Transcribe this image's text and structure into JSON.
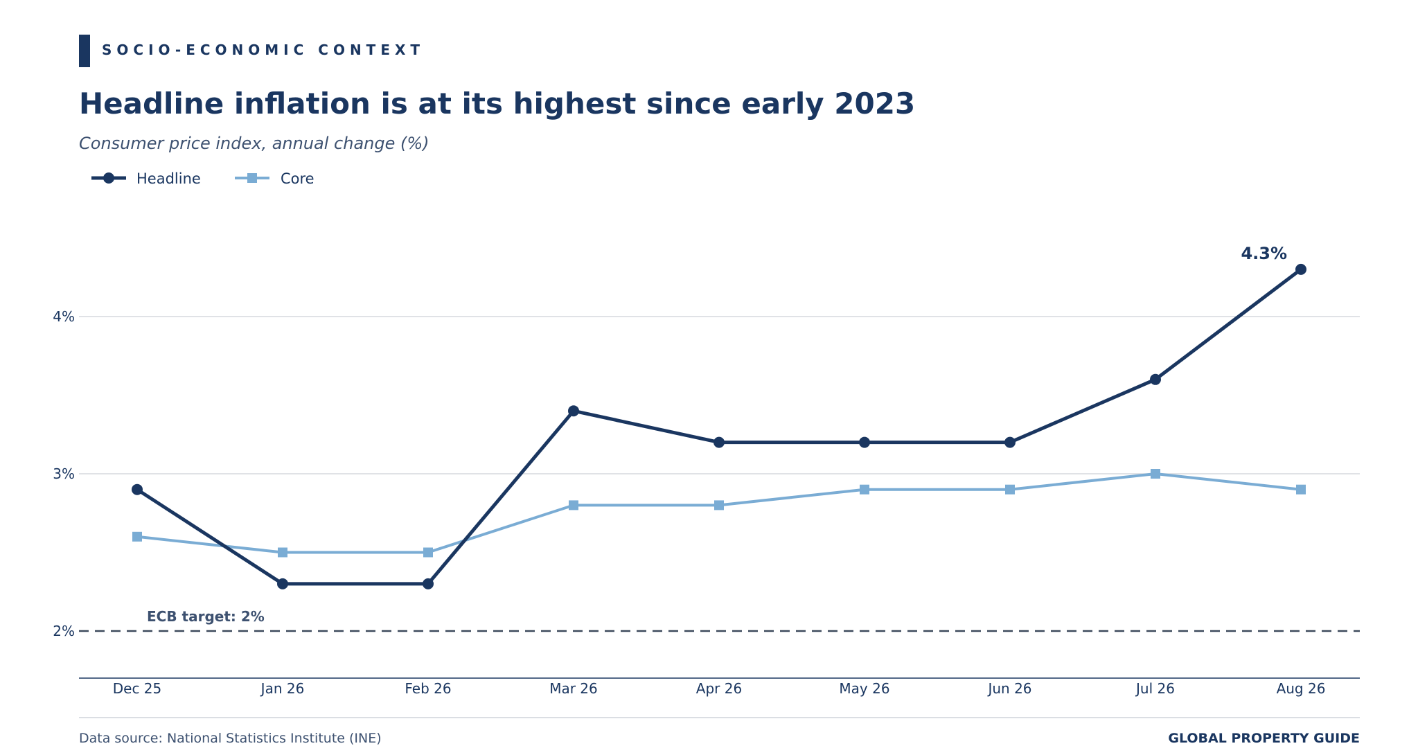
{
  "header": {
    "eyebrow": "SOCIO-ECONOMIC CONTEXT",
    "title": "Headline inflation is at its highest since early 2023",
    "subtitle": "Consumer price index, annual change (%)"
  },
  "footer": {
    "source": "Data source: National Statistics Institute (INE)",
    "brand": "GLOBAL PROPERTY GUIDE"
  },
  "colors": {
    "navy": "#1a3660",
    "light_blue": "#7aacd4",
    "grid": "#d5d9de",
    "target_line": "#3d4a5c"
  },
  "chart_data": {
    "type": "line",
    "title": "Headline inflation is at its highest since early 2023",
    "subtitle": "Consumer price index, annual change (%)",
    "categories": [
      "Dec 25",
      "Jan 26",
      "Feb 26",
      "Mar 26",
      "Apr 26",
      "May 26",
      "Jun 26",
      "Jul 26",
      "Aug 26"
    ],
    "series": [
      {
        "name": "Headline",
        "color": "#1a3660",
        "marker": "circle",
        "values": [
          2.9,
          2.3,
          2.3,
          3.4,
          3.2,
          3.2,
          3.2,
          3.6,
          4.3
        ]
      },
      {
        "name": "Core",
        "color": "#7aacd4",
        "marker": "square",
        "values": [
          2.6,
          2.5,
          2.5,
          2.8,
          2.8,
          2.9,
          2.9,
          3.0,
          2.9
        ]
      }
    ],
    "yticks": [
      2,
      3,
      4
    ],
    "ytick_labels": [
      "2%",
      "3%",
      "4%"
    ],
    "ylim": [
      1.7,
      4.6
    ],
    "grid": true,
    "legend_position": "top-left",
    "reference_line": {
      "value": 2.0,
      "label": "ECB target: 2%",
      "style": "dashed"
    },
    "annotation": {
      "series": "Headline",
      "category": "Aug 26",
      "text": "4.3%"
    },
    "xlabel": "",
    "ylabel": ""
  }
}
